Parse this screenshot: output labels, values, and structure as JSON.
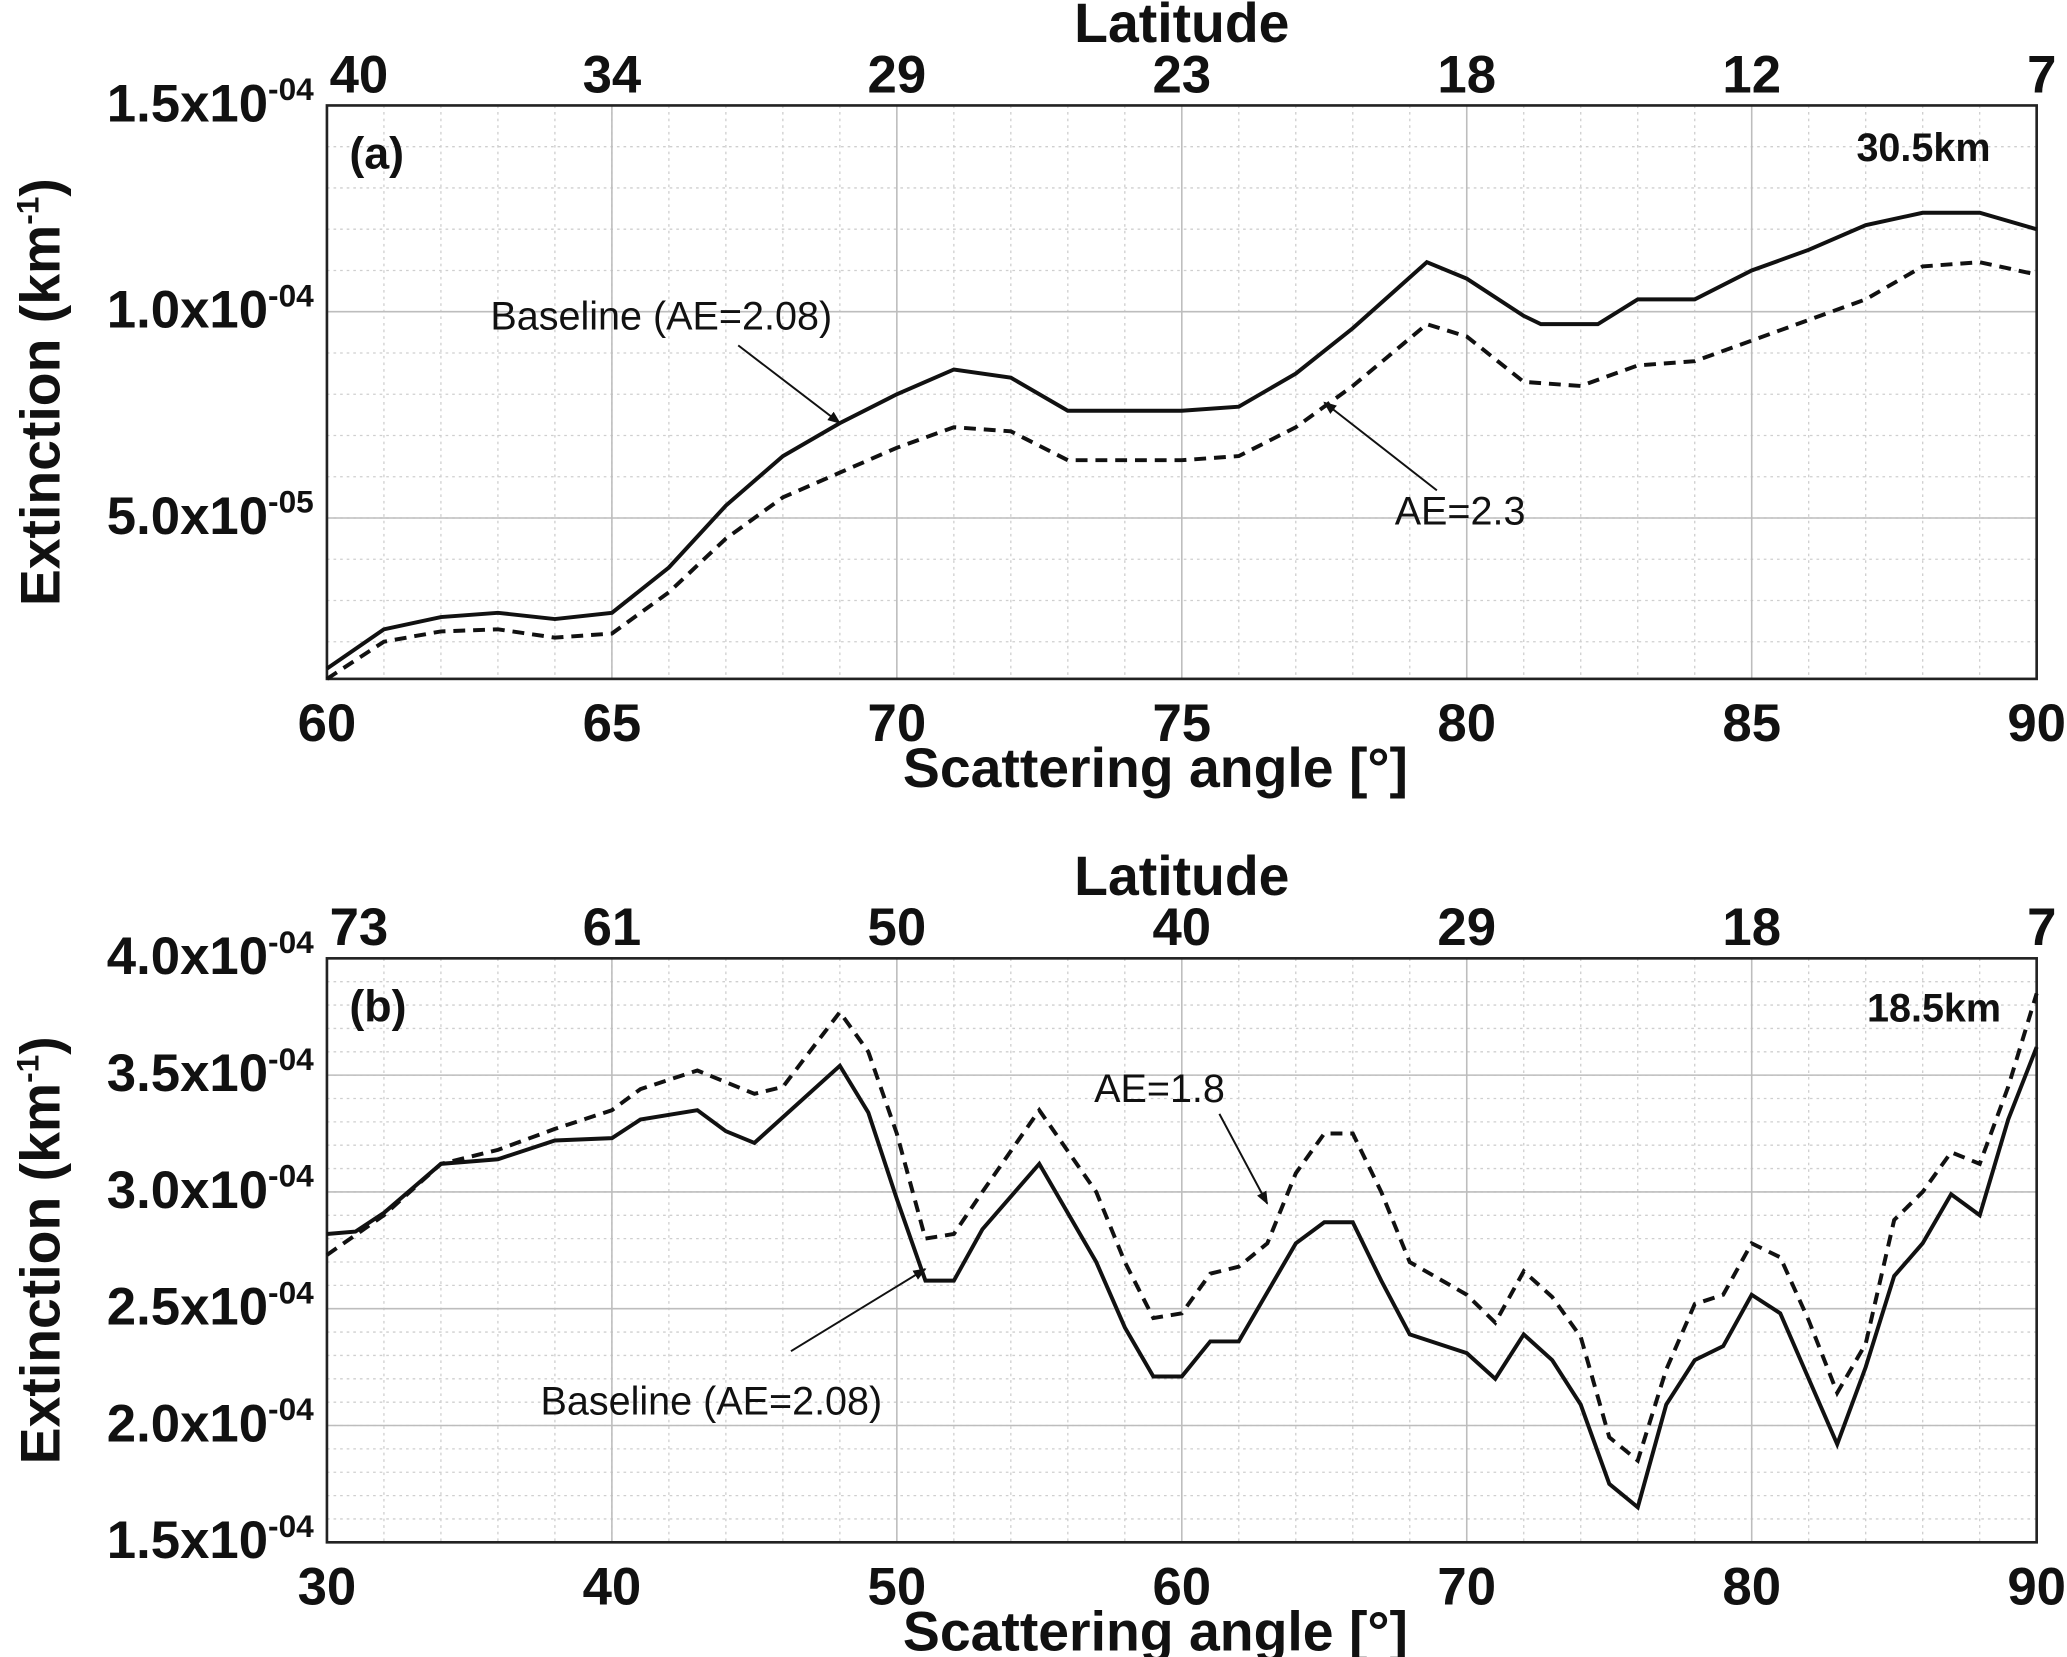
{
  "chart_data": [
    {
      "type": "line",
      "panel_label": "(a)",
      "altitude_label": "30.5km",
      "xlabel": "Scattering angle [°]",
      "ylabel": {
        "text": "Extinction (km",
        "sup": "-1",
        "close": ")"
      },
      "top_axis_title": "Latitude",
      "xlim": [
        60,
        90
      ],
      "ylim": [
        1.1e-05,
        0.00015
      ],
      "x_ticks": [
        60,
        65,
        70,
        75,
        80,
        85,
        90
      ],
      "y_ticks": [
        {
          "value": 0.00015,
          "base": "1.5x10",
          "exp": "-04"
        },
        {
          "value": 0.0001,
          "base": "1.0x10",
          "exp": "-04"
        },
        {
          "value": 5e-05,
          "base": "5.0x10",
          "exp": "-05"
        }
      ],
      "top_ticks": [
        {
          "x": 60,
          "label": "40"
        },
        {
          "x": 65,
          "label": "34"
        },
        {
          "x": 70,
          "label": "29"
        },
        {
          "x": 75,
          "label": "23"
        },
        {
          "x": 80,
          "label": "18"
        },
        {
          "x": 85,
          "label": "12"
        },
        {
          "x": 90,
          "label": "7"
        }
      ],
      "grid": true,
      "series": [
        {
          "name": "Baseline (AE=2.08)",
          "style": "solid",
          "x": [
            60,
            61,
            62,
            63,
            64,
            65,
            66,
            67,
            68,
            69,
            70,
            71,
            72,
            73,
            74,
            75,
            76,
            77,
            78,
            79.3,
            80,
            81,
            81.3,
            82.3,
            83,
            84,
            85,
            86,
            87,
            88,
            89,
            90
          ],
          "y": [
            1.35e-05,
            2.3e-05,
            2.6e-05,
            2.7e-05,
            2.55e-05,
            2.7e-05,
            3.8e-05,
            5.3e-05,
            6.5e-05,
            7.3e-05,
            8e-05,
            8.6e-05,
            8.4e-05,
            7.6e-05,
            7.6e-05,
            7.6e-05,
            7.7e-05,
            8.5e-05,
            9.6e-05,
            0.000112,
            0.000108,
            9.9e-05,
            9.7e-05,
            9.7e-05,
            0.000103,
            0.000103,
            0.00011,
            0.000115,
            0.000121,
            0.000124,
            0.000124,
            0.00012
          ]
        },
        {
          "name": "AE=2.3",
          "style": "dashed",
          "x": [
            60,
            61,
            62,
            63,
            64,
            65,
            66,
            67,
            68,
            69,
            70,
            71,
            72,
            73,
            74,
            75,
            76,
            77,
            78,
            79.3,
            80,
            81,
            82,
            83,
            84,
            85,
            86,
            87,
            88,
            89,
            90
          ],
          "y": [
            1.1e-05,
            2e-05,
            2.25e-05,
            2.3e-05,
            2.1e-05,
            2.2e-05,
            3.2e-05,
            4.5e-05,
            5.5e-05,
            6.1e-05,
            6.7e-05,
            7.2e-05,
            7.1e-05,
            6.4e-05,
            6.4e-05,
            6.4e-05,
            6.5e-05,
            7.2e-05,
            8.2e-05,
            9.7e-05,
            9.4e-05,
            8.3e-05,
            8.2e-05,
            8.7e-05,
            8.8e-05,
            9.3e-05,
            9.8e-05,
            0.000103,
            0.000111,
            0.000112,
            0.000109
          ]
        }
      ],
      "annotations": [
        {
          "text": "Baseline (AE=2.08)",
          "target_series": "Baseline (AE=2.08)",
          "arrow_to": [
            69,
            7.3e-05
          ]
        },
        {
          "text": "AE=2.3",
          "target_series": "AE=2.3",
          "arrow_to": [
            77.5,
            7.8e-05
          ]
        }
      ]
    },
    {
      "type": "line",
      "panel_label": "(b)",
      "altitude_label": "18.5km",
      "xlabel": "Scattering angle [°]",
      "ylabel": {
        "text": "Extinction (km",
        "sup": "-1",
        "close": ")"
      },
      "top_axis_title": "Latitude",
      "xlim": [
        30,
        90
      ],
      "ylim": [
        0.00015,
        0.0004
      ],
      "x_ticks": [
        30,
        40,
        50,
        60,
        70,
        80,
        90
      ],
      "y_ticks": [
        {
          "value": 0.0004,
          "base": "4.0x10",
          "exp": "-04"
        },
        {
          "value": 0.00035,
          "base": "3.5x10",
          "exp": "-04"
        },
        {
          "value": 0.0003,
          "base": "3.0x10",
          "exp": "-04"
        },
        {
          "value": 0.00025,
          "base": "2.5x10",
          "exp": "-04"
        },
        {
          "value": 0.0002,
          "base": "2.0x10",
          "exp": "-04"
        },
        {
          "value": 0.00015,
          "base": "1.5x10",
          "exp": "-04"
        }
      ],
      "top_ticks": [
        {
          "x": 30,
          "label": "73"
        },
        {
          "x": 40,
          "label": "61"
        },
        {
          "x": 50,
          "label": "50"
        },
        {
          "x": 60,
          "label": "40"
        },
        {
          "x": 70,
          "label": "29"
        },
        {
          "x": 80,
          "label": "18"
        },
        {
          "x": 90,
          "label": "7"
        }
      ],
      "grid": true,
      "series": [
        {
          "name": "Baseline (AE=2.08)",
          "style": "solid",
          "x": [
            30,
            31,
            32,
            34,
            36,
            38,
            40,
            41,
            43,
            44,
            45,
            48,
            49,
            50,
            51,
            52,
            53,
            55,
            57,
            58,
            59,
            60,
            61,
            62,
            64,
            65,
            66,
            67,
            68,
            70,
            71,
            72,
            73,
            74,
            75,
            76,
            77,
            78,
            79,
            80,
            81,
            82,
            83,
            84,
            85,
            86,
            87,
            88,
            89,
            90
          ],
          "y": [
            0.000282,
            0.000283,
            0.000291,
            0.000312,
            0.000314,
            0.000322,
            0.000323,
            0.000331,
            0.000335,
            0.000326,
            0.000321,
            0.000354,
            0.000334,
            0.000297,
            0.000262,
            0.000262,
            0.000284,
            0.000312,
            0.00027,
            0.000242,
            0.000221,
            0.000221,
            0.000236,
            0.000236,
            0.000278,
            0.000287,
            0.000287,
            0.000262,
            0.000239,
            0.000231,
            0.00022,
            0.000239,
            0.000228,
            0.000209,
            0.000175,
            0.000165,
            0.000209,
            0.000228,
            0.000234,
            0.000256,
            0.000248,
            0.00022,
            0.000192,
            0.000225,
            0.000264,
            0.000278,
            0.000299,
            0.00029,
            0.000331,
            0.000362
          ]
        },
        {
          "name": "AE=1.8",
          "style": "dashed",
          "x": [
            30,
            32,
            34,
            36,
            38,
            40,
            41,
            43,
            45,
            46,
            48,
            49,
            50,
            51,
            52,
            53,
            55,
            57,
            58,
            59,
            60,
            61,
            62,
            63,
            64,
            65,
            66,
            67,
            68,
            70,
            71,
            72,
            73,
            74,
            75,
            76,
            77,
            78,
            79,
            80,
            81,
            82,
            83,
            84,
            85,
            86,
            87,
            88,
            89,
            90
          ],
          "y": [
            0.000273,
            0.00029,
            0.000312,
            0.000318,
            0.000327,
            0.000335,
            0.000344,
            0.000352,
            0.000342,
            0.000345,
            0.000377,
            0.00036,
            0.000325,
            0.00028,
            0.000282,
            0.0003,
            0.000335,
            0.0003,
            0.00027,
            0.000246,
            0.000248,
            0.000265,
            0.000268,
            0.000278,
            0.000308,
            0.000325,
            0.000325,
            0.0003,
            0.00027,
            0.000256,
            0.000244,
            0.000266,
            0.000255,
            0.000238,
            0.000195,
            0.000185,
            0.000224,
            0.000252,
            0.000256,
            0.000278,
            0.000272,
            0.000245,
            0.000214,
            0.000235,
            0.000288,
            0.0003,
            0.000317,
            0.000312,
            0.000345,
            0.000385
          ]
        }
      ],
      "annotations": [
        {
          "text": "AE=1.8",
          "target_series": "AE=1.8",
          "arrow_to": [
            63,
            0.000295
          ]
        },
        {
          "text": "Baseline (AE=2.08)",
          "target_series": "Baseline (AE=2.08)",
          "arrow_to": [
            51,
            0.000267
          ]
        }
      ]
    }
  ]
}
